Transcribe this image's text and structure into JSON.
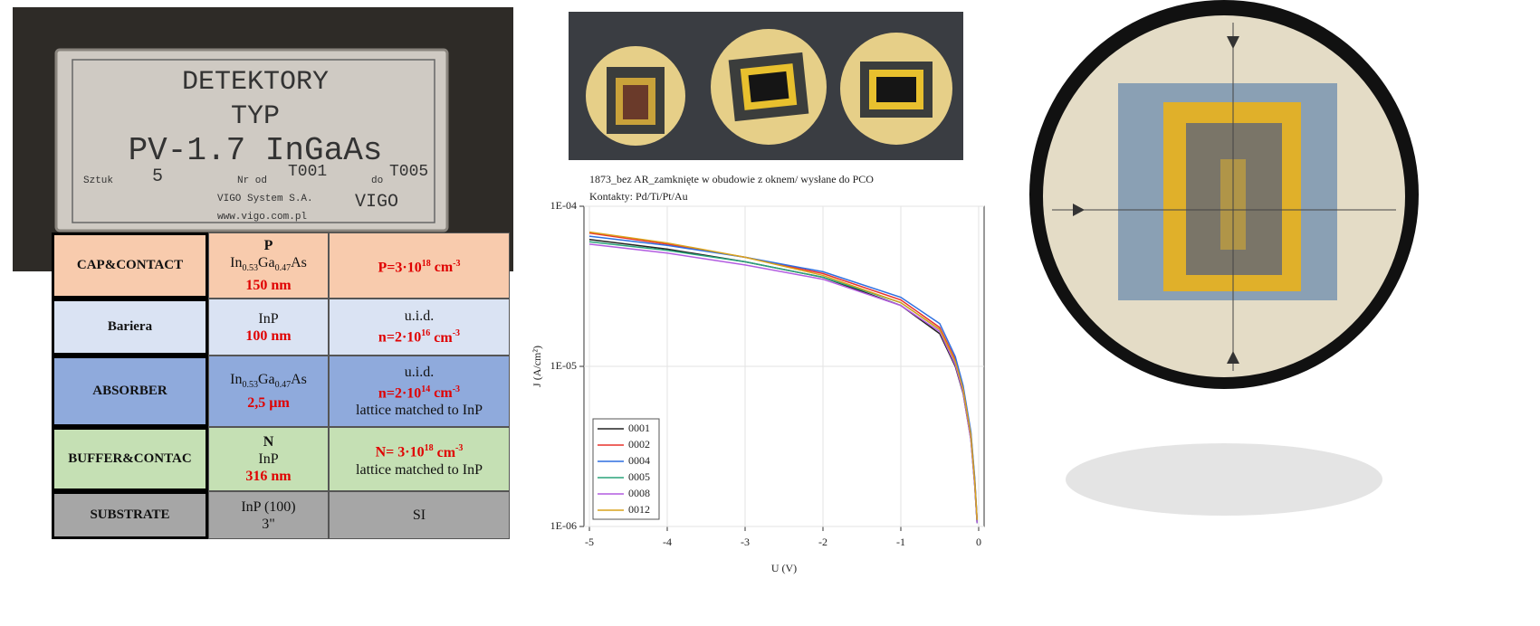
{
  "label": {
    "title": "DETEKTORY",
    "type": "TYP",
    "model": "PV-1.7 InGaAs",
    "pieces_caption": "Sztuk",
    "pieces": "5",
    "from_caption": "Nr od",
    "from": "T001",
    "to_caption": "do",
    "to": "T005",
    "company": "VIGO System S.A.",
    "url": "www.vigo.com.pl",
    "logo": "VIGO"
  },
  "table": {
    "rows": [
      {
        "layer": "CAP&CONTACT",
        "material": [
          "P",
          [
            "In",
            "0.53",
            "Ga",
            "0.47",
            "As"
          ],
          "150 nm"
        ],
        "doping": [
          [
            "P=3·10",
            "18",
            "cm",
            "-3"
          ]
        ]
      },
      {
        "layer": "Bariera",
        "material": [
          "InP",
          "100 nm"
        ],
        "doping": [
          "u.i.d.",
          [
            "n=2·10",
            "16",
            "cm",
            "-3"
          ]
        ]
      },
      {
        "layer": "ABSORBER",
        "material": [
          [
            "In",
            "0.53",
            "Ga",
            "0.47",
            "As"
          ],
          "2,5 µm"
        ],
        "doping": [
          "u.i.d.",
          [
            "n=2·10",
            "14",
            "cm",
            "-3"
          ],
          "lattice matched to InP"
        ]
      },
      {
        "layer": "BUFFER&CONTAC",
        "material": [
          "N",
          "InP",
          "316 nm"
        ],
        "doping": [
          [
            "N= 3·10",
            "18",
            "cm",
            "-3"
          ],
          "lattice matched to InP"
        ]
      },
      {
        "layer": "SUBSTRATE",
        "material": [
          "InP (100)",
          "3\""
        ],
        "doping": [
          "SI"
        ]
      }
    ]
  },
  "chart_data": {
    "type": "line",
    "title": [
      "1873_bez AR_zamknięte w obudowie z oknem/ wysłane do PCO",
      "Kontakty: Pd/Ti/Pt/Au"
    ],
    "x_label": "U (V)",
    "y_label": "J (A/cm²)",
    "x": [
      -5,
      -4,
      -3,
      -2,
      -1,
      -0.5,
      -0.3,
      -0.2,
      -0.1,
      -0.05,
      -0.02
    ],
    "xlim": [
      -5.07,
      0.07
    ],
    "xticks": [
      -5,
      -4,
      -3,
      -2,
      -1,
      0
    ],
    "ylim": [
      1e-06,
      0.0001
    ],
    "y_scale": "log",
    "yticks": [
      {
        "value": 1e-06,
        "label": "1E-06"
      },
      {
        "value": 1e-05,
        "label": "1E-05"
      },
      {
        "value": 0.0001,
        "label": "1E-04"
      }
    ],
    "grid": true,
    "legend": "lower left",
    "series": [
      {
        "name": "0001",
        "color": "#222222",
        "values": [
          6.2e-05,
          5.4e-05,
          4.5e-05,
          3.6e-05,
          2.4e-05,
          1.6e-05,
          1e-05,
          6.8e-06,
          3.5e-06,
          1.8e-06,
          1.05e-06
        ]
      },
      {
        "name": "0002",
        "color": "#e8322c",
        "values": [
          6.8e-05,
          5.8e-05,
          4.8e-05,
          3.8e-05,
          2.6e-05,
          1.75e-05,
          1.1e-05,
          7.4e-06,
          3.8e-06,
          1.95e-06,
          1.1e-06
        ]
      },
      {
        "name": "0004",
        "color": "#2f6fe0",
        "values": [
          6.5e-05,
          5.7e-05,
          4.8e-05,
          3.9e-05,
          2.7e-05,
          1.85e-05,
          1.15e-05,
          7.6e-06,
          3.9e-06,
          2e-06,
          1.1e-06
        ]
      },
      {
        "name": "0005",
        "color": "#2aa37a",
        "values": [
          6e-05,
          5.3e-05,
          4.5e-05,
          3.6e-05,
          2.5e-05,
          1.7e-05,
          1.05e-05,
          7e-06,
          3.6e-06,
          1.85e-06,
          1.05e-06
        ]
      },
      {
        "name": "0008",
        "color": "#b25ce0",
        "values": [
          5.8e-05,
          5.1e-05,
          4.3e-05,
          3.5e-05,
          2.4e-05,
          1.65e-05,
          1.02e-05,
          6.9e-06,
          3.5e-06,
          1.8e-06,
          1.05e-06
        ]
      },
      {
        "name": "0012",
        "color": "#d9a21b",
        "values": [
          6.9e-05,
          5.9e-05,
          4.8e-05,
          3.7e-05,
          2.5e-05,
          1.7e-05,
          1.07e-05,
          7.2e-06,
          3.7e-06,
          1.9e-06,
          1.1e-06
        ]
      }
    ]
  }
}
